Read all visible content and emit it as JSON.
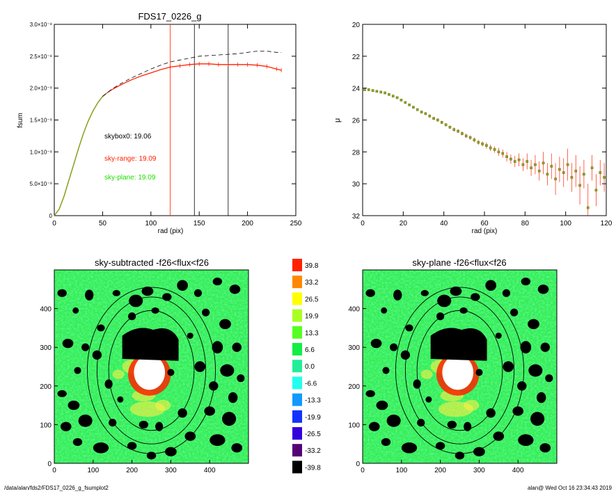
{
  "footer": {
    "path": "/data/alan/fds2/FDS17_0226_g_fsumplot2",
    "stamp": "alan@  Wed Oct 16 23:34:43 2019"
  },
  "colors": {
    "sky_range": "#ff2200",
    "sky_plane": "#22dd00",
    "skybox0": "#000000"
  },
  "chart_data": [
    {
      "id": "fsum",
      "type": "line",
      "title": "FDS17_0226_g",
      "xlabel": "rad (pix)",
      "ylabel": "fsum",
      "xlim": [
        0,
        250
      ],
      "ylim": [
        0,
        3e-08
      ],
      "xticks": [
        "0",
        "50",
        "100",
        "150",
        "200",
        "250"
      ],
      "xtick_values": [
        0,
        50,
        100,
        150,
        200,
        250
      ],
      "yticks": [
        "0",
        "5.0×10⁻⁹",
        "1.0×10⁻⁸",
        "1.5×10⁻⁸",
        "2.0×10⁻⁸",
        "2.5×10⁻⁸",
        "3.0×10⁻⁸"
      ],
      "ytick_values": [
        0,
        5e-09,
        1e-08,
        1.5e-08,
        2e-08,
        2.5e-08,
        3e-08
      ],
      "annotations": [
        {
          "text": "skybox0: 19.06",
          "color": "#000000"
        },
        {
          "text": "sky-range: 19.09",
          "color": "#ff2200"
        },
        {
          "text": "sky-plane: 19.09",
          "color": "#22dd00"
        }
      ],
      "vlines": [
        {
          "x": 120,
          "color": "#ff2200"
        },
        {
          "x": 145,
          "color": "#000000"
        },
        {
          "x": 180,
          "color": "#000000"
        }
      ],
      "series": [
        {
          "style": "solid",
          "color": "#ff2200",
          "x": [
            0,
            5,
            10,
            15,
            20,
            25,
            30,
            35,
            40,
            45,
            50,
            55,
            60,
            70,
            80,
            90,
            100,
            110,
            120,
            130,
            140,
            150,
            160,
            170,
            180,
            190,
            200,
            210,
            220,
            230,
            235
          ],
          "y": [
            0,
            1e-09,
            3e-09,
            5.5e-09,
            8e-09,
            1.05e-08,
            1.28e-08,
            1.48e-08,
            1.64e-08,
            1.77e-08,
            1.87e-08,
            1.93e-08,
            1.98e-08,
            2.06e-08,
            2.13e-08,
            2.19e-08,
            2.24e-08,
            2.29e-08,
            2.33e-08,
            2.35e-08,
            2.37e-08,
            2.38e-08,
            2.38e-08,
            2.37e-08,
            2.37e-08,
            2.37e-08,
            2.37e-08,
            2.36e-08,
            2.34e-08,
            2.3e-08,
            2.28e-08
          ]
        },
        {
          "style": "dashed",
          "color": "#000000",
          "x": [
            50,
            60,
            70,
            80,
            90,
            100,
            110,
            120,
            130,
            140,
            150,
            160,
            170,
            180,
            190,
            200,
            210,
            220,
            230,
            235
          ],
          "y": [
            1.87e-08,
            1.99e-08,
            2.08e-08,
            2.16e-08,
            2.23e-08,
            2.3e-08,
            2.36e-08,
            2.41e-08,
            2.44e-08,
            2.47e-08,
            2.5e-08,
            2.51e-08,
            2.52e-08,
            2.53e-08,
            2.54e-08,
            2.56e-08,
            2.58e-08,
            2.58e-08,
            2.56e-08,
            2.56e-08
          ]
        }
      ]
    },
    {
      "id": "mu",
      "type": "scatter",
      "xlabel": "rad (pix)",
      "ylabel": "μ",
      "xlim": [
        0,
        120
      ],
      "ylim": [
        32,
        20
      ],
      "xticks": [
        "0",
        "20",
        "40",
        "60",
        "80",
        "100",
        "120"
      ],
      "xtick_values": [
        0,
        20,
        40,
        60,
        80,
        100,
        120
      ],
      "yticks": [
        "20",
        "22",
        "24",
        "26",
        "28",
        "30",
        "32"
      ],
      "ytick_values": [
        20,
        22,
        24,
        26,
        28,
        30,
        32
      ],
      "points": {
        "x": [
          1,
          3,
          5,
          7,
          9,
          11,
          13,
          15,
          17,
          19,
          21,
          23,
          25,
          27,
          29,
          31,
          33,
          35,
          37,
          39,
          41,
          43,
          45,
          47,
          49,
          51,
          53,
          55,
          57,
          59,
          61,
          63,
          65,
          67,
          69,
          71,
          73,
          75,
          77,
          79,
          81,
          83,
          85,
          87,
          89,
          91,
          93,
          95,
          97,
          99,
          101,
          103,
          105,
          107,
          109,
          111,
          113,
          115,
          117,
          119
        ],
        "y": [
          24.1,
          24.1,
          24.15,
          24.2,
          24.25,
          24.3,
          24.4,
          24.5,
          24.6,
          24.75,
          24.9,
          25.05,
          25.2,
          25.35,
          25.5,
          25.6,
          25.75,
          25.9,
          26.0,
          26.15,
          26.3,
          26.45,
          26.6,
          26.7,
          26.85,
          27.0,
          27.1,
          27.25,
          27.4,
          27.5,
          27.6,
          27.75,
          27.85,
          28.0,
          28.1,
          28.3,
          28.45,
          28.6,
          28.5,
          28.8,
          28.6,
          29.0,
          28.8,
          29.2,
          28.7,
          29.4,
          28.9,
          29.7,
          29.1,
          29.3,
          28.8,
          29.6,
          29.2,
          30.1,
          29.4,
          31.5,
          29.0,
          30.4,
          29.3,
          29.6
        ],
        "err": [
          0.05,
          0.05,
          0.05,
          0.05,
          0.05,
          0.05,
          0.06,
          0.06,
          0.06,
          0.06,
          0.07,
          0.07,
          0.08,
          0.08,
          0.08,
          0.09,
          0.1,
          0.1,
          0.1,
          0.1,
          0.1,
          0.1,
          0.12,
          0.12,
          0.12,
          0.13,
          0.13,
          0.15,
          0.15,
          0.15,
          0.2,
          0.2,
          0.2,
          0.25,
          0.25,
          0.3,
          0.3,
          0.35,
          0.4,
          0.4,
          0.5,
          0.5,
          0.6,
          0.6,
          0.7,
          0.7,
          0.8,
          1.0,
          0.8,
          0.9,
          1.0,
          0.9,
          1.0,
          1.2,
          0.9,
          1.5,
          0.8,
          1.0,
          0.8,
          0.9
        ]
      }
    },
    {
      "id": "img-left",
      "type": "heatmap",
      "title": "sky-subtracted -f26<flux<f26",
      "xlim": [
        0,
        500
      ],
      "ylim": [
        0,
        500
      ],
      "xticks": [
        "0",
        "100",
        "200",
        "300",
        "400"
      ],
      "xtick_values": [
        0,
        100,
        200,
        300,
        400
      ],
      "yticks": [
        "0",
        "100",
        "200",
        "300",
        "400"
      ],
      "ytick_values": [
        0,
        100,
        200,
        300,
        400
      ]
    },
    {
      "id": "img-right",
      "type": "heatmap",
      "title": "sky-plane -f26<flux<f26",
      "xlim": [
        0,
        500
      ],
      "ylim": [
        0,
        500
      ],
      "xticks": [
        "0",
        "100",
        "200",
        "300",
        "400"
      ],
      "xtick_values": [
        0,
        100,
        200,
        300,
        400
      ],
      "yticks": [
        "0",
        "100",
        "200",
        "300",
        "400"
      ],
      "ytick_values": [
        0,
        100,
        200,
        300,
        400
      ]
    }
  ],
  "colorbar": {
    "labels": [
      "39.8",
      "33.2",
      "26.5",
      "19.9",
      "13.3",
      "6.6",
      "0.0",
      "-6.6",
      "-13.3",
      "-19.9",
      "-26.5",
      "-33.2",
      "-39.8"
    ],
    "colors": [
      "#ff2200",
      "#ff8800",
      "#ffff00",
      "#aaff22",
      "#55ff22",
      "#11ee44",
      "#22ee99",
      "#22ffee",
      "#1199ff",
      "#1133ff",
      "#3300dd",
      "#550077",
      "#000000"
    ]
  }
}
